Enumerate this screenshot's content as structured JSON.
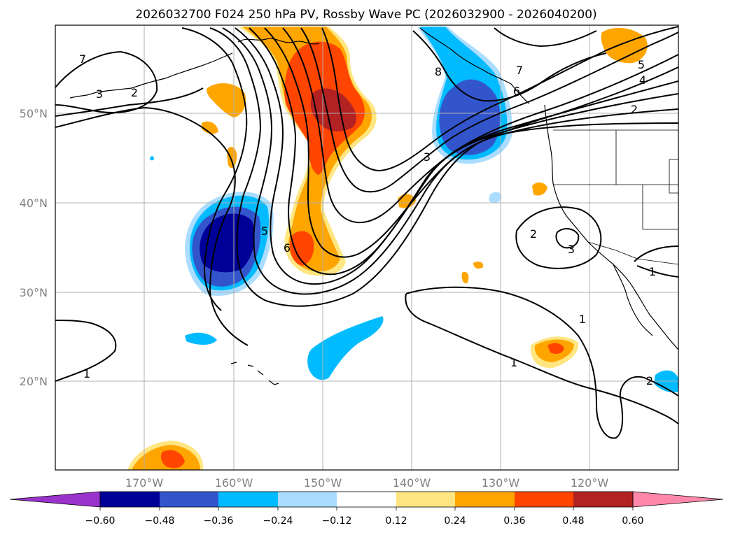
{
  "title": "2026032700 F024 250 hPa PV, Rossby Wave PC (2026032900 - 2026040200)",
  "lat_labels": [
    "50°N",
    "40°N",
    "30°N",
    "20°N"
  ],
  "lon_labels": [
    "170°W",
    "160°W",
    "150°W",
    "140°W",
    "130°W",
    "120°W"
  ],
  "colorbar": {
    "ticks": [
      "−0.60",
      "−0.48",
      "−0.36",
      "−0.24",
      "−0.12",
      "0.12",
      "0.24",
      "0.36",
      "0.48",
      "0.60"
    ],
    "colors": [
      "#9933cc",
      "#000099",
      "#3355cc",
      "#00bbff",
      "#aaddff",
      "#ffffff",
      "#ffe680",
      "#ffa500",
      "#ff4500",
      "#b22222",
      "#ff88aa"
    ],
    "extend": "both"
  },
  "contour_labels": [
    "7",
    "3",
    "2",
    "8",
    "7",
    "6",
    "5",
    "4",
    "2",
    "3",
    "5",
    "6",
    "2",
    "3",
    "1",
    "1",
    "1",
    "1",
    "2"
  ],
  "fill_colors": {
    "neg_060": "#000099",
    "neg_048": "#3355cc",
    "neg_036": "#00bbff",
    "neg_024": "#aaddff",
    "pos_024": "#ffe680",
    "pos_036": "#ffa500",
    "pos_048": "#ff4500",
    "pos_060": "#b22222"
  }
}
